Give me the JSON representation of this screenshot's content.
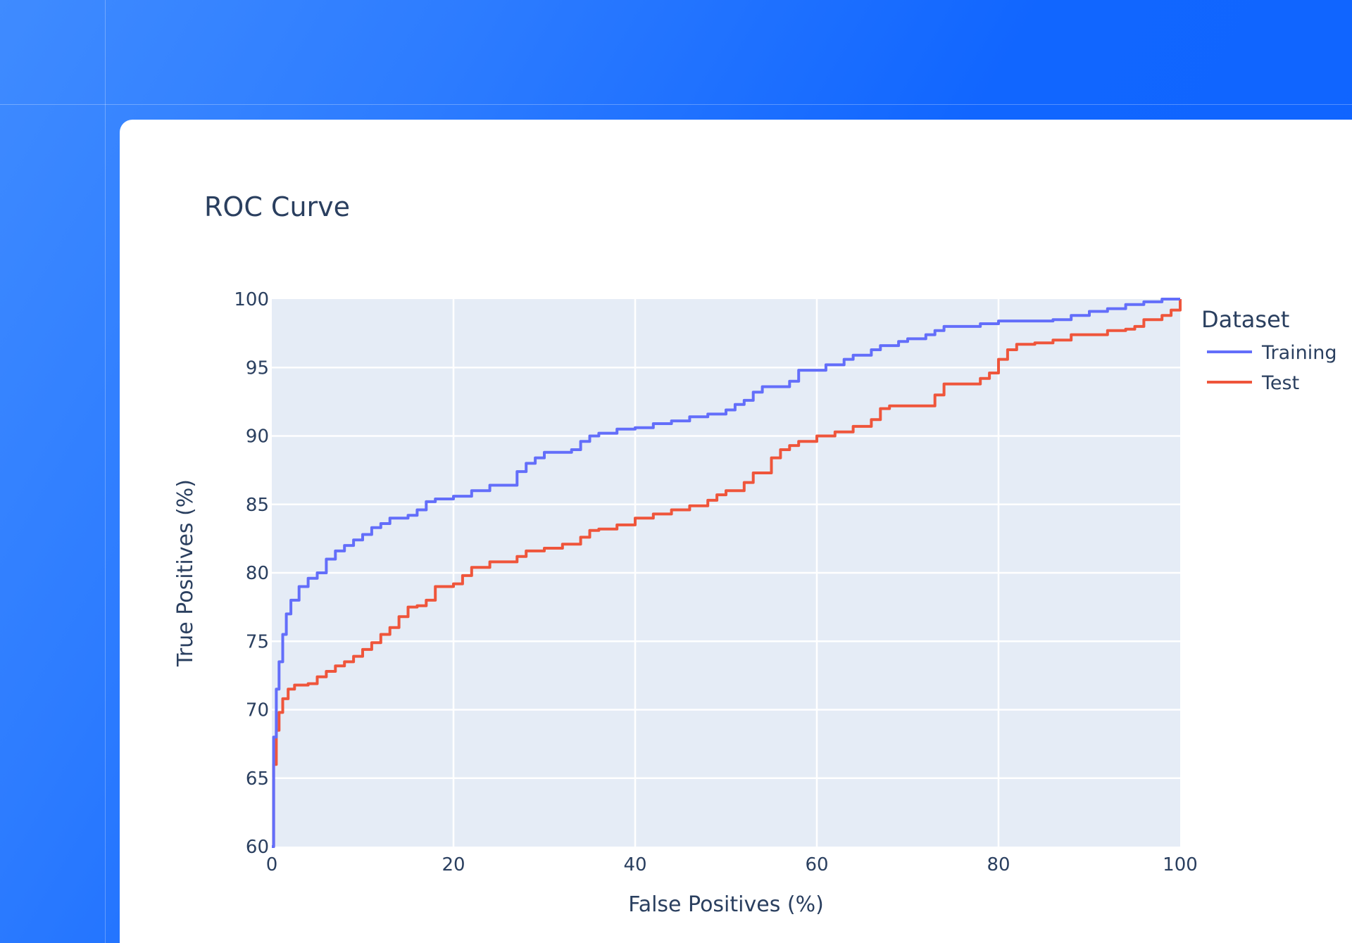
{
  "chart_data": {
    "type": "line",
    "title": "ROC Curve",
    "xlabel": "False Positives (%)",
    "ylabel": "True Positives (%)",
    "xlim": [
      0,
      100
    ],
    "ylim": [
      60,
      100
    ],
    "xticks": [
      "0",
      "20",
      "40",
      "60",
      "80",
      "100"
    ],
    "yticks": [
      "60",
      "65",
      "70",
      "75",
      "80",
      "85",
      "90",
      "95",
      "100"
    ],
    "grid": true,
    "legend": {
      "title": "Dataset",
      "placement": "top-right"
    },
    "series": [
      {
        "name": "Training",
        "color": "#636efa",
        "x": [
          0,
          0.2,
          0.5,
          0.8,
          1.2,
          1.6,
          2.1,
          3.0,
          4.0,
          5.0,
          6.0,
          7.0,
          8.0,
          9.0,
          10.0,
          11.0,
          12.0,
          13.0,
          14.0,
          15.0,
          16.0,
          17.0,
          18.0,
          20.0,
          22.0,
          24.0,
          26.0,
          27.0,
          28.0,
          29.0,
          30.0,
          32.0,
          33.0,
          34.0,
          35.0,
          36.0,
          38.0,
          40.0,
          42.0,
          44.0,
          46.0,
          48.0,
          49.0,
          50.0,
          51.0,
          52.0,
          53.0,
          54.0,
          55.0,
          57.0,
          58.0,
          59.0,
          61.0,
          63.0,
          64.0,
          66.0,
          67.0,
          69.0,
          70.0,
          72.0,
          73.0,
          74.0,
          76.0,
          78.0,
          80.0,
          83.0,
          86.0,
          88.0,
          90.0,
          92.0,
          94.0,
          96.0,
          98.0,
          100.0
        ],
        "y": [
          60.0,
          68.0,
          71.5,
          73.5,
          75.5,
          77.0,
          78.0,
          79.0,
          79.6,
          80.0,
          81.0,
          81.6,
          82.0,
          82.4,
          82.8,
          83.3,
          83.6,
          84.0,
          84.0,
          84.2,
          84.6,
          85.2,
          85.4,
          85.6,
          86.0,
          86.4,
          86.4,
          87.4,
          88.0,
          88.4,
          88.8,
          88.8,
          89.0,
          89.6,
          90.0,
          90.2,
          90.5,
          90.6,
          90.9,
          91.1,
          91.4,
          91.6,
          91.6,
          91.9,
          92.3,
          92.6,
          93.2,
          93.6,
          93.6,
          94.0,
          94.8,
          94.8,
          95.2,
          95.6,
          95.9,
          96.3,
          96.6,
          96.9,
          97.1,
          97.4,
          97.7,
          98.0,
          98.0,
          98.2,
          98.4,
          98.4,
          98.5,
          98.8,
          99.1,
          99.3,
          99.6,
          99.8,
          100.0,
          100.0
        ]
      },
      {
        "name": "Test",
        "color": "#ef553b",
        "x": [
          0,
          0.2,
          0.5,
          0.8,
          1.2,
          1.8,
          2.5,
          4.0,
          5.0,
          6.0,
          7.0,
          8.0,
          9.0,
          10.0,
          11.0,
          12.0,
          13.0,
          14.0,
          15.0,
          16.0,
          17.0,
          18.0,
          20.0,
          21.0,
          22.0,
          24.0,
          26.0,
          27.0,
          28.0,
          30.0,
          32.0,
          34.0,
          35.0,
          36.0,
          38.0,
          40.0,
          42.0,
          44.0,
          46.0,
          48.0,
          49.0,
          50.0,
          52.0,
          53.0,
          54.0,
          55.0,
          56.0,
          57.0,
          58.0,
          60.0,
          62.0,
          64.0,
          66.0,
          67.0,
          68.0,
          72.0,
          73.0,
          74.0,
          76.0,
          78.0,
          79.0,
          80.0,
          81.0,
          82.0,
          84.0,
          86.0,
          88.0,
          90.0,
          92.0,
          94.0,
          95.0,
          96.0,
          98.0,
          99.0,
          100.0
        ],
        "y": [
          60.0,
          66.0,
          68.5,
          69.8,
          70.8,
          71.5,
          71.8,
          71.9,
          72.4,
          72.8,
          73.2,
          73.5,
          73.9,
          74.4,
          74.9,
          75.5,
          76.0,
          76.8,
          77.5,
          77.6,
          78.0,
          79.0,
          79.2,
          79.8,
          80.4,
          80.8,
          80.8,
          81.2,
          81.6,
          81.8,
          82.1,
          82.6,
          83.1,
          83.2,
          83.5,
          84.0,
          84.3,
          84.6,
          84.9,
          85.3,
          85.7,
          86.0,
          86.6,
          87.3,
          87.3,
          88.4,
          89.0,
          89.3,
          89.6,
          90.0,
          90.3,
          90.7,
          91.2,
          92.0,
          92.2,
          92.2,
          93.0,
          93.8,
          93.8,
          94.2,
          94.6,
          95.6,
          96.3,
          96.7,
          96.8,
          97.0,
          97.4,
          97.4,
          97.7,
          97.8,
          98.0,
          98.5,
          98.8,
          99.2,
          100.0
        ]
      }
    ]
  }
}
